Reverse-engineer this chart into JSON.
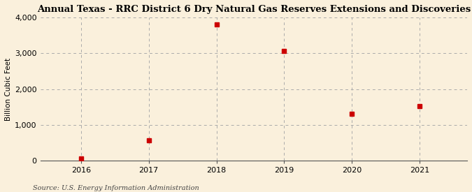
{
  "title": "Annual Texas - RRC District 6 Dry Natural Gas Reserves Extensions and Discoveries",
  "ylabel": "Billion Cubic Feet",
  "source": "Source: U.S. Energy Information Administration",
  "years": [
    2016,
    2017,
    2018,
    2019,
    2020,
    2021
  ],
  "values": [
    50,
    570,
    3810,
    3060,
    1310,
    1530
  ],
  "ylim": [
    0,
    4000
  ],
  "yticks": [
    0,
    1000,
    2000,
    3000,
    4000
  ],
  "ytick_labels": [
    "0",
    "1,000",
    "2,000",
    "3,000",
    "4,000"
  ],
  "marker_color": "#cc0000",
  "marker": "s",
  "marker_size": 4,
  "background_color": "#faf0dc",
  "grid_color": "#aaaaaa",
  "title_fontsize": 9.5,
  "label_fontsize": 7.5,
  "tick_fontsize": 8,
  "source_fontsize": 7
}
